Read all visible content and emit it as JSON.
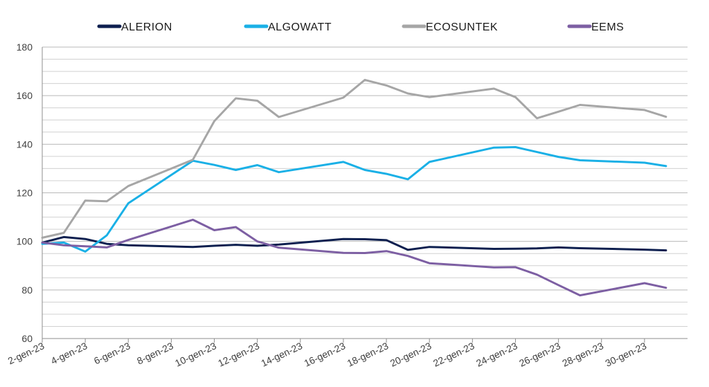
{
  "chart_data": {
    "type": "line",
    "title": "",
    "xlabel": "",
    "ylabel": "",
    "ylim": [
      60,
      180
    ],
    "y_ticks": [
      60,
      80,
      100,
      120,
      140,
      160,
      180
    ],
    "grid": true,
    "legend": "top",
    "x_tick_labels": [
      "2-gen-23",
      "4-gen-23",
      "6-gen-23",
      "8-gen-23",
      "10-gen-23",
      "12-gen-23",
      "14-gen-23",
      "16-gen-23",
      "18-gen-23",
      "20-gen-23",
      "22-gen-23",
      "24-gen-23",
      "26-gen-23",
      "28-gen-23",
      "30-gen-23"
    ],
    "x": [
      2,
      3,
      4,
      5,
      6,
      9,
      10,
      11,
      12,
      13,
      16,
      17,
      18,
      19,
      20,
      23,
      24,
      25,
      26,
      27,
      30,
      31
    ],
    "x_labels": [
      "2-gen-23",
      "3-gen-23",
      "4-gen-23",
      "5-gen-23",
      "6-gen-23",
      "9-gen-23",
      "10-gen-23",
      "11-gen-23",
      "12-gen-23",
      "13-gen-23",
      "16-gen-23",
      "17-gen-23",
      "18-gen-23",
      "19-gen-23",
      "20-gen-23",
      "23-gen-23",
      "24-gen-23",
      "25-gen-23",
      "26-gen-23",
      "27-gen-23",
      "30-gen-23",
      "31-gen-23"
    ],
    "series": [
      {
        "name": "ALERION",
        "color": "#0d1f4f",
        "values": [
          99.5,
          101.8,
          101,
          99,
          98.4,
          97.7,
          98.2,
          98.6,
          98.2,
          98.7,
          101,
          100.9,
          100.5,
          96.5,
          97.7,
          96.9,
          97,
          97.1,
          97.5,
          97.2,
          96.6,
          96.3
        ]
      },
      {
        "name": "ALGOWATT",
        "color": "#1ab0e6",
        "values": [
          99,
          99.5,
          95.8,
          102.5,
          115.7,
          133.2,
          131.5,
          129.4,
          131.4,
          128.5,
          132.7,
          129.4,
          127.8,
          125.6,
          132.7,
          138.6,
          138.8,
          136.8,
          134.8,
          133.4,
          132.4,
          131
        ]
      },
      {
        "name": "ECOSUNTEK",
        "color": "#a6a6a6",
        "values": [
          101.5,
          103.5,
          116.8,
          116.5,
          122.8,
          133.6,
          149.5,
          158.9,
          157.9,
          151.2,
          159.2,
          166.5,
          164.2,
          160.9,
          159.4,
          162.9,
          159.4,
          150.7,
          153.4,
          156.2,
          154.1,
          151.3
        ]
      },
      {
        "name": "EEMS",
        "color": "#7d5fa3",
        "values": [
          99.5,
          98.4,
          98,
          97.5,
          100.6,
          108.9,
          104.6,
          105.9,
          100,
          97.4,
          95.3,
          95.2,
          96,
          94,
          91,
          89.3,
          89.4,
          86.3,
          82,
          77.8,
          82.8,
          80.9
        ]
      }
    ]
  }
}
